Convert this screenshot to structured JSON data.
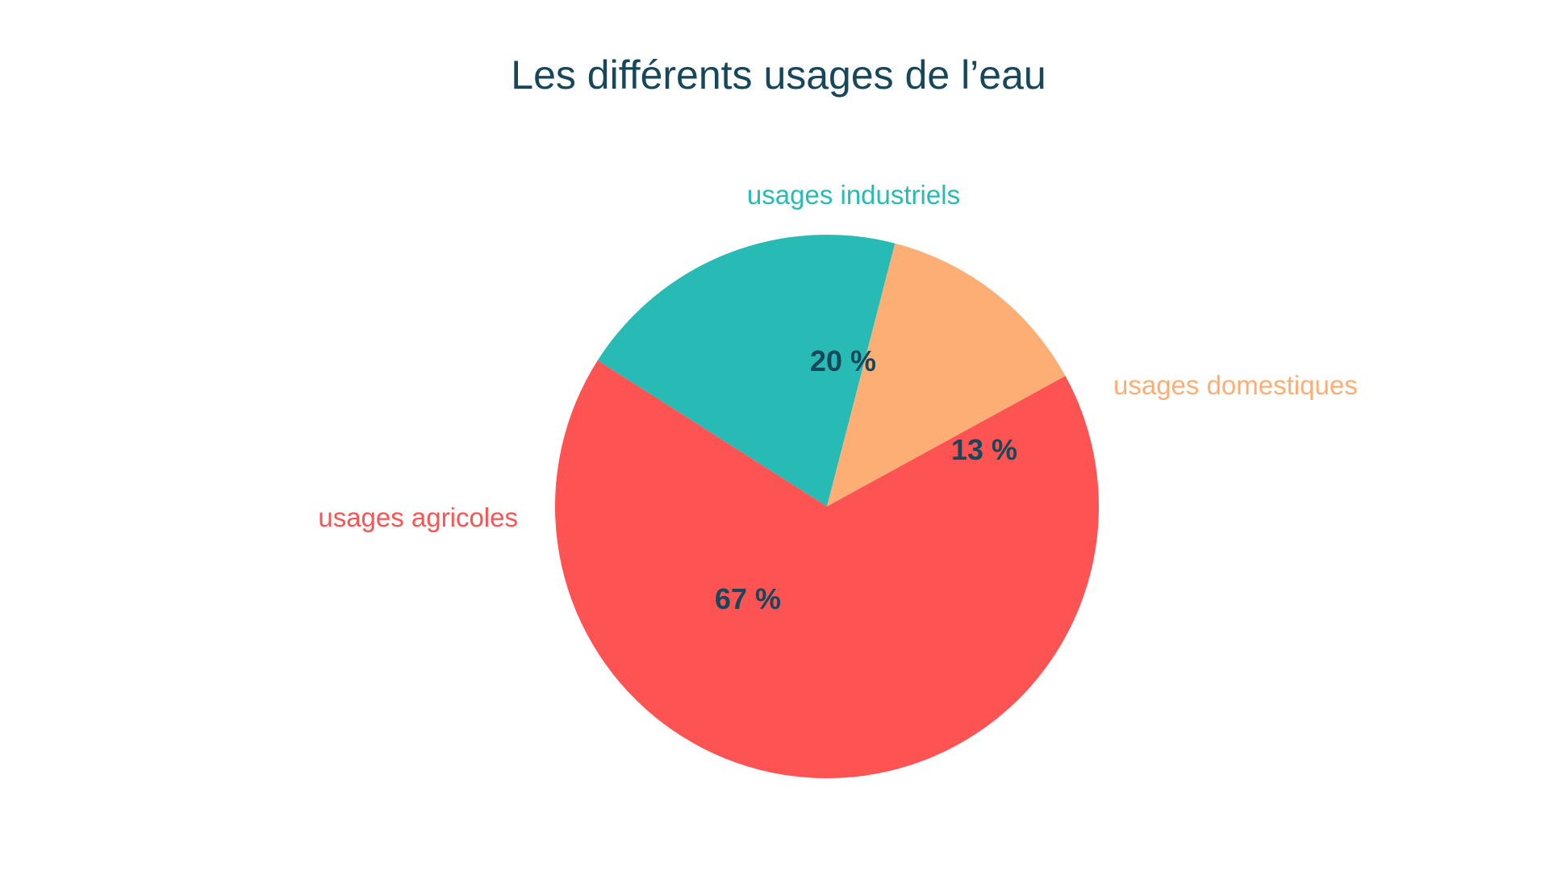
{
  "chart_data": {
    "type": "pie",
    "title": "Les différents usages de l’eau",
    "categories": [
      "usages industriels",
      "usages domestiques",
      "usages agricoles"
    ],
    "values": [
      20,
      13,
      67
    ],
    "value_labels": [
      "20 %",
      "13 %",
      "67 %"
    ],
    "legend": "none",
    "colors": [
      "#28BBB5",
      "#FDAE75",
      "#FD5353"
    ],
    "title_color": "#16475B",
    "value_label_color": "#16475B"
  }
}
